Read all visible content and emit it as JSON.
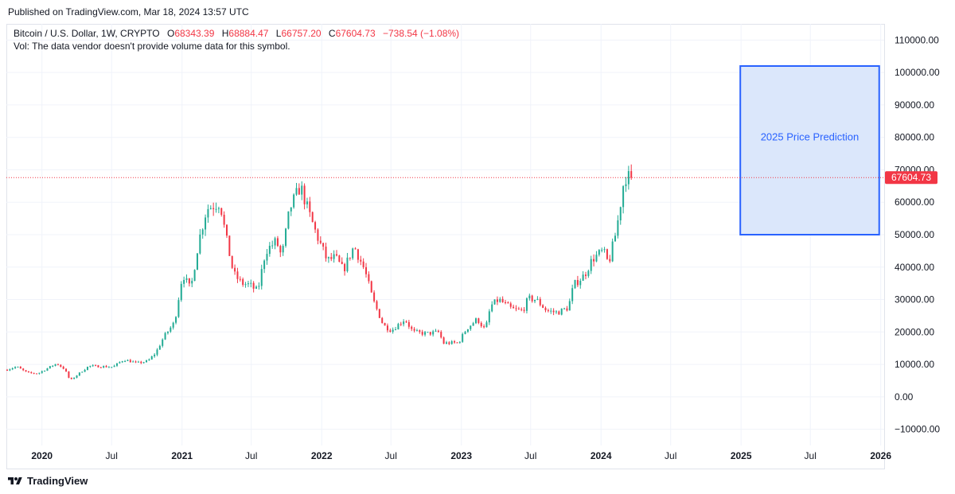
{
  "header": {
    "published": "Published on TradingView.com, Mar 18, 2024 13:57 UTC"
  },
  "legend": {
    "symbol": "Bitcoin / U.S. Dollar, 1W, CRYPTO",
    "open_label": "O",
    "open": "68343.39",
    "high_label": "H",
    "high": "68884.47",
    "low_label": "L",
    "low": "66757.20",
    "close_label": "C",
    "close": "67604.73",
    "change": "−738.54 (−1.08%)",
    "vol_note": "Vol: The data vendor doesn't provide volume data for this symbol."
  },
  "footer": {
    "brand": "TradingView"
  },
  "colors": {
    "up": "#22ab94",
    "down": "#f23645",
    "grid": "#f0f3fa",
    "axis_text": "#131722",
    "price_line": "#f23645",
    "box_fill": "#dbe7fb",
    "box_stroke": "#2962ff",
    "box_text": "#2962ff"
  },
  "chart_data": {
    "type": "candlestick",
    "title": "Bitcoin / U.S. Dollar, 1W, CRYPTO",
    "interval": "1W",
    "ylim": [
      -15000,
      115000
    ],
    "y_ticks": [
      {
        "value": 110000,
        "label": "110000.00"
      },
      {
        "value": 100000,
        "label": "100000.00"
      },
      {
        "value": 90000,
        "label": "90000.00"
      },
      {
        "value": 80000,
        "label": "80000.00"
      },
      {
        "value": 70000,
        "label": "70000.00"
      },
      {
        "value": 60000,
        "label": "60000.00"
      },
      {
        "value": 50000,
        "label": "50000.00"
      },
      {
        "value": 40000,
        "label": "40000.00"
      },
      {
        "value": 30000,
        "label": "30000.00"
      },
      {
        "value": 20000,
        "label": "20000.00"
      },
      {
        "value": 10000,
        "label": "10000.00"
      },
      {
        "value": 0,
        "label": "0.00"
      },
      {
        "value": -10000,
        "label": "−10000.00"
      }
    ],
    "xlim": [
      "2019-09-30",
      "2026-01-10"
    ],
    "x_ticks": [
      {
        "date": "2020-01-01",
        "label": "2020",
        "bold": true
      },
      {
        "date": "2020-07-01",
        "label": "Jul",
        "bold": false
      },
      {
        "date": "2021-01-01",
        "label": "2021",
        "bold": true
      },
      {
        "date": "2021-07-01",
        "label": "Jul",
        "bold": false
      },
      {
        "date": "2022-01-01",
        "label": "2022",
        "bold": true
      },
      {
        "date": "2022-07-01",
        "label": "Jul",
        "bold": false
      },
      {
        "date": "2023-01-01",
        "label": "2023",
        "bold": true
      },
      {
        "date": "2023-07-01",
        "label": "Jul",
        "bold": false
      },
      {
        "date": "2024-01-01",
        "label": "2024",
        "bold": true
      },
      {
        "date": "2024-07-01",
        "label": "Jul",
        "bold": false
      },
      {
        "date": "2025-01-01",
        "label": "2025",
        "bold": true
      },
      {
        "date": "2025-07-01",
        "label": "Jul",
        "bold": false
      },
      {
        "date": "2026-01-01",
        "label": "2026",
        "bold": true
      }
    ],
    "last_price": {
      "value": 67604.73,
      "label": "67604.73"
    },
    "annotation": {
      "type": "rectangle",
      "text": "2025 Price Prediction",
      "x_start": "2024-12-30",
      "x_end": "2025-12-28",
      "y_low": 50000,
      "y_high": 102000
    },
    "price_path": [
      [
        "2019-09-30",
        8300
      ],
      [
        "2019-10-28",
        9300
      ],
      [
        "2019-11-25",
        7400
      ],
      [
        "2019-12-23",
        7200
      ],
      [
        "2020-01-20",
        9000
      ],
      [
        "2020-02-10",
        10300
      ],
      [
        "2020-03-02",
        8500
      ],
      [
        "2020-03-16",
        5000
      ],
      [
        "2020-04-06",
        7000
      ],
      [
        "2020-05-04",
        9500
      ],
      [
        "2020-06-01",
        9400
      ],
      [
        "2020-07-06",
        9200
      ],
      [
        "2020-08-03",
        11500
      ],
      [
        "2020-09-07",
        10400
      ],
      [
        "2020-10-05",
        11000
      ],
      [
        "2020-10-26",
        13600
      ],
      [
        "2020-11-16",
        18500
      ],
      [
        "2020-12-14",
        23000
      ],
      [
        "2021-01-04",
        38000
      ],
      [
        "2021-01-25",
        33000
      ],
      [
        "2021-02-15",
        48000
      ],
      [
        "2021-03-08",
        58000
      ],
      [
        "2021-04-12",
        60000
      ],
      [
        "2021-04-26",
        50000
      ],
      [
        "2021-05-17",
        38000
      ],
      [
        "2021-06-07",
        35000
      ],
      [
        "2021-06-28",
        34500
      ],
      [
        "2021-07-19",
        32500
      ],
      [
        "2021-08-09",
        45000
      ],
      [
        "2021-09-06",
        48000
      ],
      [
        "2021-09-20",
        43000
      ],
      [
        "2021-10-11",
        58000
      ],
      [
        "2021-11-08",
        65000
      ],
      [
        "2021-11-29",
        57000
      ],
      [
        "2021-12-20",
        50000
      ],
      [
        "2022-01-17",
        42000
      ],
      [
        "2022-02-07",
        43000
      ],
      [
        "2022-02-28",
        39000
      ],
      [
        "2022-03-28",
        46500
      ],
      [
        "2022-04-25",
        39000
      ],
      [
        "2022-05-16",
        30000
      ],
      [
        "2022-06-13",
        22000
      ],
      [
        "2022-07-04",
        20500
      ],
      [
        "2022-08-08",
        24000
      ],
      [
        "2022-08-29",
        20000
      ],
      [
        "2022-10-03",
        19500
      ],
      [
        "2022-11-07",
        20000
      ],
      [
        "2022-11-14",
        16500
      ],
      [
        "2022-12-26",
        16700
      ],
      [
        "2023-01-16",
        21000
      ],
      [
        "2023-02-13",
        24000
      ],
      [
        "2023-03-06",
        20500
      ],
      [
        "2023-03-20",
        28000
      ],
      [
        "2023-04-10",
        30000
      ],
      [
        "2023-05-15",
        27000
      ],
      [
        "2023-06-12",
        26500
      ],
      [
        "2023-06-26",
        30300
      ],
      [
        "2023-07-17",
        30000
      ],
      [
        "2023-08-14",
        26500
      ],
      [
        "2023-09-11",
        26000
      ],
      [
        "2023-10-09",
        27500
      ],
      [
        "2023-10-23",
        34500
      ],
      [
        "2023-11-20",
        37500
      ],
      [
        "2023-12-11",
        42500
      ],
      [
        "2024-01-08",
        45000
      ],
      [
        "2024-01-22",
        41000
      ],
      [
        "2024-02-12",
        51500
      ],
      [
        "2024-03-04",
        68000
      ],
      [
        "2024-03-18",
        67600
      ]
    ]
  }
}
